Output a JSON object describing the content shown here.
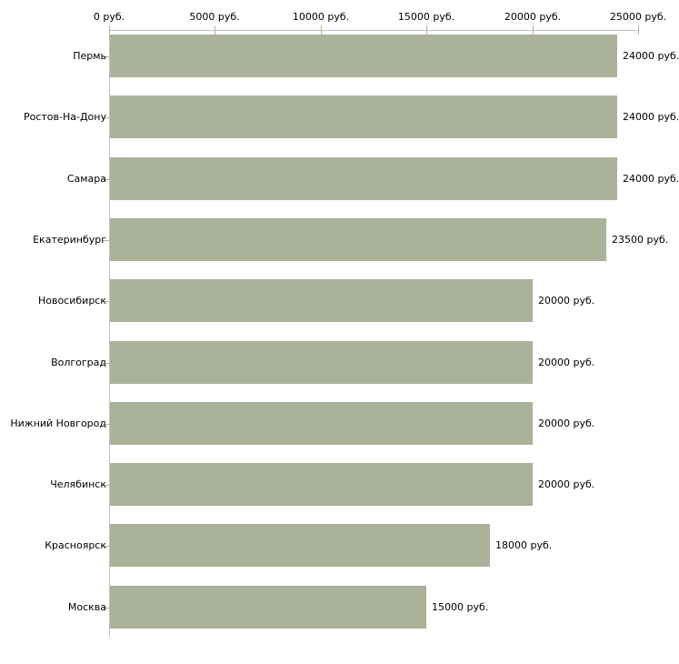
{
  "chart_data": {
    "type": "bar",
    "orientation": "horizontal",
    "title": "",
    "categories": [
      "Пермь",
      "Ростов-На-Дону",
      "Самара",
      "Екатеринбург",
      "Новосибирск",
      "Волгоград",
      "Нижний Новгород",
      "Челябинск",
      "Красноярск",
      "Москва"
    ],
    "values": [
      24000,
      24000,
      24000,
      23500,
      20000,
      20000,
      20000,
      20000,
      18000,
      15000
    ],
    "value_labels": [
      "24000 руб.",
      "24000 руб.",
      "24000 руб.",
      "23500 руб.",
      "20000 руб.",
      "20000 руб.",
      "20000 руб.",
      "20000 руб.",
      "18000 руб.",
      "15000 руб."
    ],
    "x_axis": {
      "position": "top",
      "min": 0,
      "max": 25000,
      "ticks": [
        0,
        5000,
        10000,
        15000,
        20000,
        25000
      ],
      "tick_labels": [
        "0 руб.",
        "5000 руб.",
        "10000 руб.",
        "15000 руб.",
        "20000 руб.",
        "25000 руб."
      ]
    },
    "ylabel": "",
    "xlabel": "",
    "grid": false,
    "legend": false,
    "colors": {
      "bar_fill": "#aab299",
      "axis_line": "#c0c0c0",
      "tick_mark": "#b6b38b",
      "text": "#000000",
      "background": "#ffffff"
    }
  }
}
